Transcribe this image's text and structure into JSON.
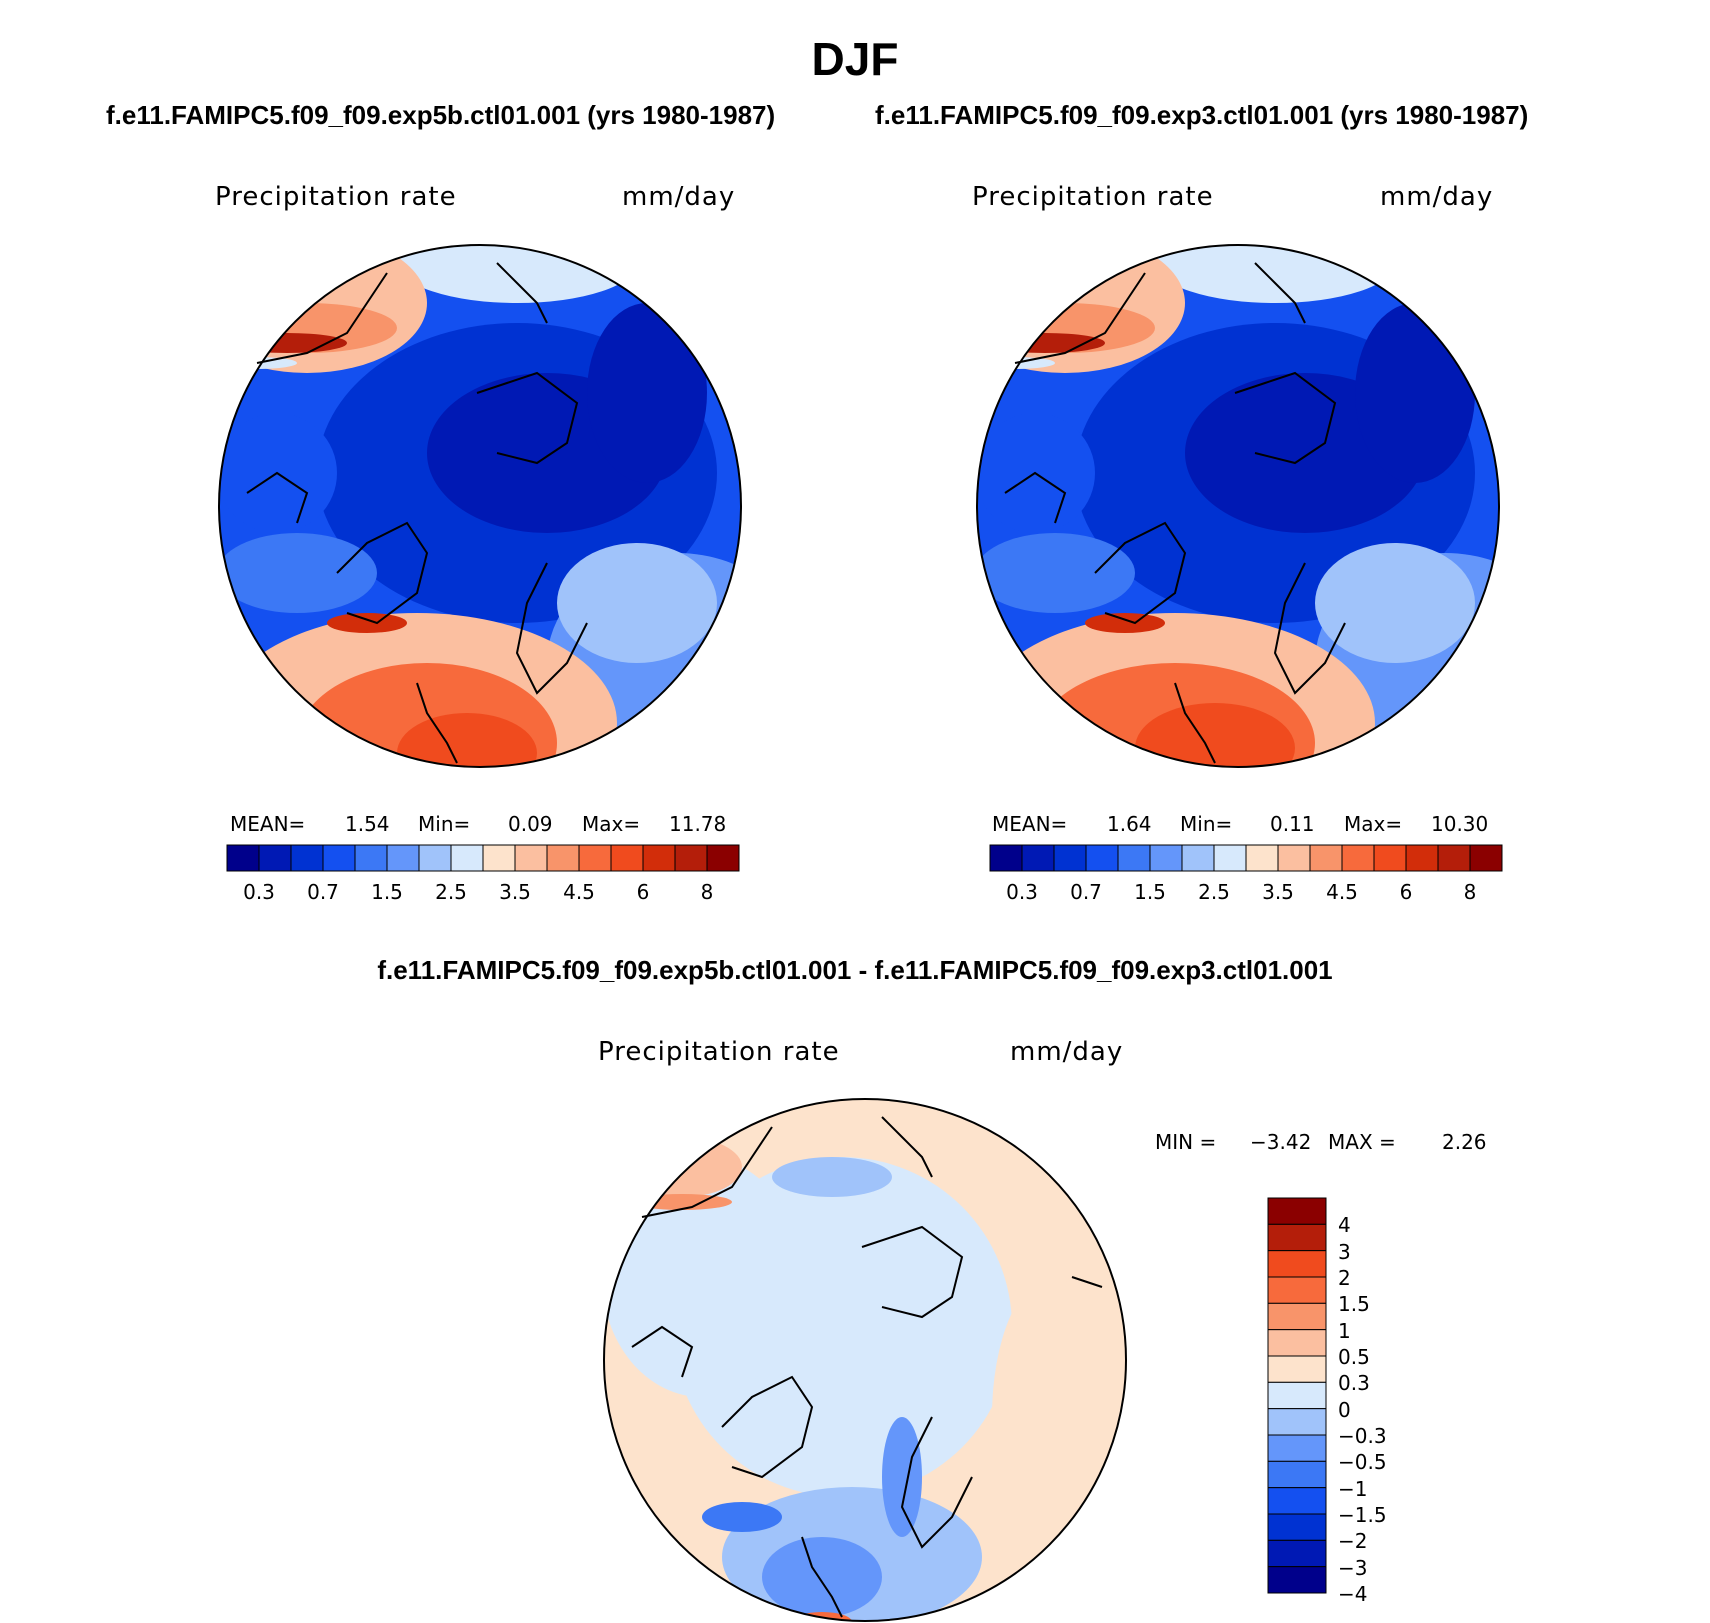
{
  "title": "DJF",
  "subtitle_left": "f.e11.FAMIPC5.f09_f09.exp5b.ctl01.001 (yrs 1980-1987)",
  "subtitle_right": "f.e11.FAMIPC5.f09_f09.exp3.ctl01.001 (yrs 1980-1987)",
  "diff_title": "f.e11.FAMIPC5.f09_f09.exp5b.ctl01.001 - f.e11.FAMIPC5.f09_f09.exp3.ctl01.001",
  "panels": [
    {
      "variable": "Precipitation rate",
      "units": "mm/day",
      "stats": {
        "mean_label": "MEAN=",
        "mean": "1.54",
        "min_label": "Min=",
        "min": "0.09",
        "max_label": "Max=",
        "max": "11.78"
      }
    },
    {
      "variable": "Precipitation rate",
      "units": "mm/day",
      "stats": {
        "mean_label": "MEAN=",
        "mean": "1.64",
        "min_label": "Min=",
        "min": "0.11",
        "max_label": "Max=",
        "max": "10.30"
      }
    }
  ],
  "diff_panel": {
    "variable": "Precipitation rate",
    "units": "mm/day",
    "stats": {
      "min_label": "MIN =",
      "min": "−3.42",
      "max_label": "MAX =",
      "max": "2.26"
    }
  },
  "colorbar_abs": {
    "colors": [
      "#00008b",
      "#0019b4",
      "#0032d2",
      "#1450f0",
      "#3c78f5",
      "#6496fa",
      "#a0c3fa",
      "#d7e9fc",
      "#fde3cc",
      "#fbbfa0",
      "#f8946a",
      "#f76a3c",
      "#f04b1e",
      "#d22d0a",
      "#b41e0a",
      "#8b0000"
    ],
    "labels": [
      "0.3",
      "0.7",
      "1.5",
      "2.5",
      "3.5",
      "4.5",
      "6",
      "8"
    ]
  },
  "colorbar_diff": {
    "colors": [
      "#8b0000",
      "#b41e0a",
      "#f04b1e",
      "#f76a3c",
      "#f8946a",
      "#fbbfa0",
      "#fde3cc",
      "#d7e9fc",
      "#a0c3fa",
      "#6496fa",
      "#3c78f5",
      "#1450f0",
      "#0032d2",
      "#0019b4",
      "#00008b"
    ],
    "labels": [
      "4",
      "3",
      "2",
      "1.5",
      "1",
      "0.5",
      "0.3",
      "0",
      "−0.3",
      "−0.5",
      "−1",
      "−1.5",
      "−2",
      "−3",
      "−4"
    ]
  }
}
